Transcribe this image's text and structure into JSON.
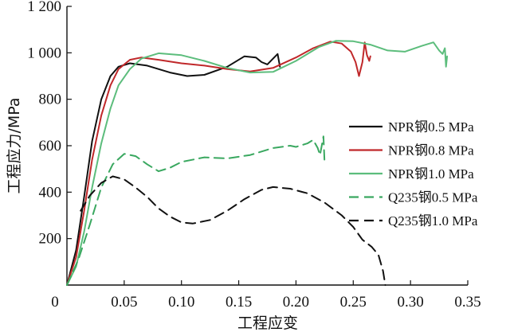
{
  "chart_data": {
    "type": "line",
    "xlabel": "工程应变",
    "ylabel": "工程应力/MPa",
    "xlim": [
      0,
      0.35
    ],
    "ylim": [
      0,
      1200
    ],
    "x_ticks": [
      "0",
      "0.05",
      "0.10",
      "0.15",
      "0.20",
      "0.25",
      "0.30",
      "0.35"
    ],
    "y_ticks": [
      "0",
      "200",
      "400",
      "600",
      "800",
      "1 000",
      "1 200"
    ],
    "legend_position": "right",
    "series": [
      {
        "name": "NPR钢0.5 MPa",
        "color": "#111111",
        "dash": "solid",
        "points": [
          [
            0,
            0
          ],
          [
            0.008,
            150
          ],
          [
            0.015,
            380
          ],
          [
            0.022,
            620
          ],
          [
            0.03,
            800
          ],
          [
            0.038,
            900
          ],
          [
            0.045,
            940
          ],
          [
            0.055,
            955
          ],
          [
            0.07,
            945
          ],
          [
            0.09,
            915
          ],
          [
            0.105,
            900
          ],
          [
            0.12,
            905
          ],
          [
            0.14,
            940
          ],
          [
            0.155,
            985
          ],
          [
            0.165,
            980
          ],
          [
            0.17,
            960
          ],
          [
            0.175,
            950
          ],
          [
            0.18,
            975
          ],
          [
            0.184,
            995
          ],
          [
            0.186,
            940
          ]
        ]
      },
      {
        "name": "NPR钢0.8 MPa",
        "color": "#c0282a",
        "dash": "solid",
        "points": [
          [
            0,
            0
          ],
          [
            0.008,
            120
          ],
          [
            0.015,
            320
          ],
          [
            0.022,
            540
          ],
          [
            0.03,
            730
          ],
          [
            0.038,
            860
          ],
          [
            0.045,
            930
          ],
          [
            0.055,
            970
          ],
          [
            0.065,
            980
          ],
          [
            0.08,
            970
          ],
          [
            0.1,
            955
          ],
          [
            0.12,
            945
          ],
          [
            0.14,
            930
          ],
          [
            0.16,
            920
          ],
          [
            0.18,
            935
          ],
          [
            0.2,
            980
          ],
          [
            0.215,
            1020
          ],
          [
            0.23,
            1048
          ],
          [
            0.24,
            1040
          ],
          [
            0.248,
            1005
          ],
          [
            0.252,
            960
          ],
          [
            0.255,
            900
          ],
          [
            0.258,
            960
          ],
          [
            0.26,
            1045
          ],
          [
            0.262,
            990
          ],
          [
            0.264,
            965
          ],
          [
            0.265,
            985
          ]
        ]
      },
      {
        "name": "NPR钢1.0 MPa",
        "color": "#5cbd7c",
        "dash": "solid",
        "points": [
          [
            0,
            0
          ],
          [
            0.008,
            80
          ],
          [
            0.015,
            230
          ],
          [
            0.022,
            420
          ],
          [
            0.03,
            610
          ],
          [
            0.038,
            760
          ],
          [
            0.045,
            860
          ],
          [
            0.055,
            930
          ],
          [
            0.065,
            975
          ],
          [
            0.08,
            998
          ],
          [
            0.1,
            990
          ],
          [
            0.12,
            965
          ],
          [
            0.14,
            935
          ],
          [
            0.16,
            915
          ],
          [
            0.18,
            918
          ],
          [
            0.2,
            965
          ],
          [
            0.22,
            1025
          ],
          [
            0.235,
            1052
          ],
          [
            0.25,
            1050
          ],
          [
            0.265,
            1035
          ],
          [
            0.28,
            1010
          ],
          [
            0.295,
            1005
          ],
          [
            0.31,
            1030
          ],
          [
            0.32,
            1045
          ],
          [
            0.325,
            1010
          ],
          [
            0.328,
            995
          ],
          [
            0.33,
            1020
          ],
          [
            0.331,
            940
          ],
          [
            0.332,
            985
          ]
        ]
      },
      {
        "name": "Q235钢0.5 MPa",
        "color": "#3aa860",
        "dash": "dashed",
        "points": [
          [
            0,
            0
          ],
          [
            0.01,
            110
          ],
          [
            0.02,
            260
          ],
          [
            0.03,
            420
          ],
          [
            0.04,
            520
          ],
          [
            0.05,
            565
          ],
          [
            0.06,
            555
          ],
          [
            0.07,
            520
          ],
          [
            0.08,
            490
          ],
          [
            0.09,
            505
          ],
          [
            0.1,
            530
          ],
          [
            0.12,
            550
          ],
          [
            0.14,
            545
          ],
          [
            0.16,
            560
          ],
          [
            0.18,
            590
          ],
          [
            0.195,
            600
          ],
          [
            0.2,
            595
          ],
          [
            0.21,
            610
          ],
          [
            0.215,
            625
          ],
          [
            0.219,
            590
          ],
          [
            0.221,
            560
          ],
          [
            0.224,
            640
          ],
          [
            0.225,
            520
          ]
        ]
      },
      {
        "name": "Q235钢1.0 MPa",
        "color": "#111111",
        "dash": "dashed",
        "points": [
          [
            0.012,
            320
          ],
          [
            0.02,
            385
          ],
          [
            0.03,
            440
          ],
          [
            0.04,
            468
          ],
          [
            0.05,
            455
          ],
          [
            0.06,
            420
          ],
          [
            0.07,
            380
          ],
          [
            0.08,
            330
          ],
          [
            0.09,
            295
          ],
          [
            0.1,
            270
          ],
          [
            0.11,
            265
          ],
          [
            0.125,
            280
          ],
          [
            0.14,
            320
          ],
          [
            0.155,
            370
          ],
          [
            0.17,
            410
          ],
          [
            0.18,
            422
          ],
          [
            0.195,
            415
          ],
          [
            0.21,
            395
          ],
          [
            0.225,
            355
          ],
          [
            0.24,
            300
          ],
          [
            0.25,
            250
          ],
          [
            0.258,
            195
          ],
          [
            0.266,
            165
          ],
          [
            0.272,
            130
          ],
          [
            0.276,
            60
          ],
          [
            0.278,
            0
          ]
        ]
      }
    ]
  }
}
